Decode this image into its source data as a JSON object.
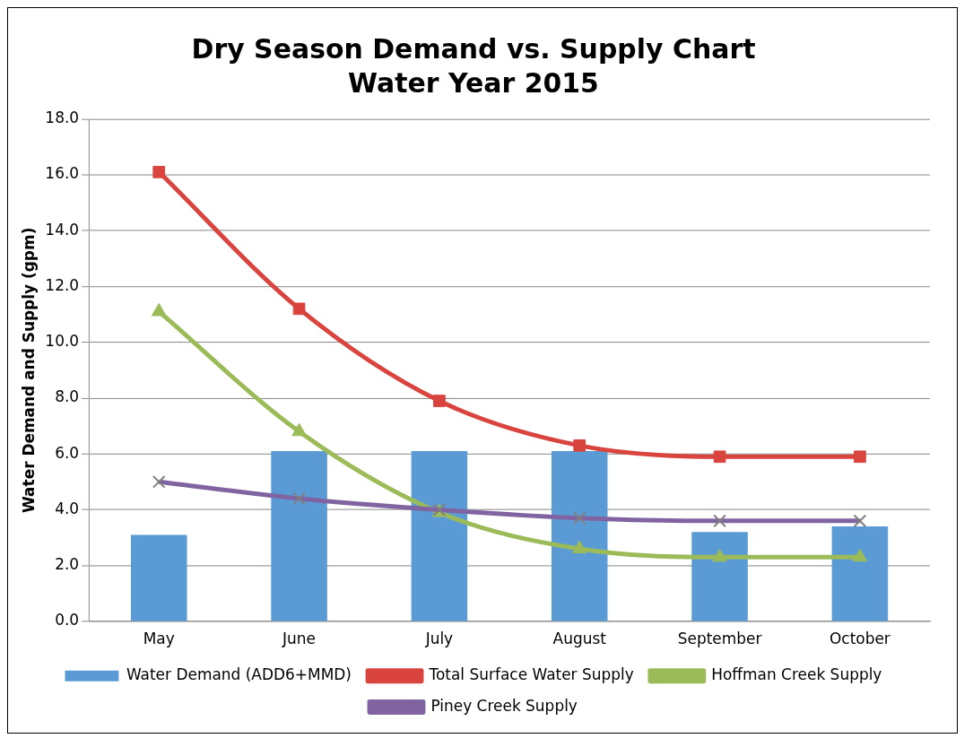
{
  "chart_data": {
    "type": "bar",
    "title": "Dry Season Demand vs. Supply Chart",
    "subtitle": "Water Year 2015",
    "ylabel": "Water Demand and Supply (gpm)",
    "categories": [
      "May",
      "June",
      "July",
      "August",
      "September",
      "October"
    ],
    "series": [
      {
        "name": "Water Demand (ADD6+MMD)",
        "color": "#5b9bd5",
        "values": [
          3.1,
          6.1,
          6.1,
          6.1,
          3.2,
          3.4
        ]
      },
      {
        "name": "Total Surface Water Supply",
        "type": "line",
        "color": "#d9443f",
        "marker": "square",
        "values": [
          16.1,
          11.2,
          7.9,
          6.3,
          5.9,
          5.9
        ]
      },
      {
        "name": "Hoffman Creek Supply",
        "type": "line",
        "color": "#9bbb59",
        "marker": "triangle",
        "values": [
          11.1,
          6.8,
          3.9,
          2.6,
          2.3,
          2.3
        ]
      },
      {
        "name": "Piney Creek Supply",
        "type": "line",
        "color": "#8064a2",
        "marker": "cross",
        "values": [
          5.0,
          4.4,
          4.0,
          3.7,
          3.6,
          3.6
        ]
      }
    ],
    "ylim": [
      0,
      18
    ],
    "yticks": [
      {
        "value": 0,
        "label": "0.0"
      },
      {
        "value": 2,
        "label": "2.0"
      },
      {
        "value": 4,
        "label": "4.0"
      },
      {
        "value": 6,
        "label": "6.0"
      },
      {
        "value": 8,
        "label": "8.0"
      },
      {
        "value": 10,
        "label": "10.0"
      },
      {
        "value": 12,
        "label": "12.0"
      },
      {
        "value": 14,
        "label": "14.0"
      },
      {
        "value": 16,
        "label": "16.0"
      },
      {
        "value": 18,
        "label": "18.0"
      }
    ],
    "grid": "y",
    "legend": "bottom"
  }
}
